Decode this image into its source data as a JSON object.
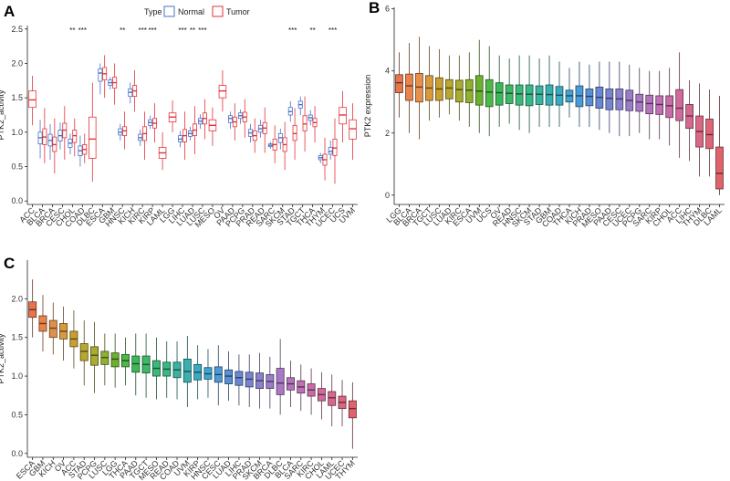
{
  "figure": {
    "panel_a_letter": "A",
    "panel_b_letter": "B",
    "panel_c_letter": "C"
  },
  "legend": {
    "title": "Type",
    "normal_label": "Normal",
    "tumor_label": "Tumor"
  },
  "colors": {
    "normal": "#4A71C4",
    "tumor": "#E53238"
  },
  "chart_data": [
    {
      "id": "A",
      "type": "boxplot",
      "ylabel": "PTK2_activity",
      "xlabel": "",
      "ylim": [
        -0.05,
        2.55
      ],
      "yticks": [
        "0.0",
        "0.5",
        "1.0",
        "1.5",
        "2.0",
        "2.5"
      ],
      "categories": [
        "ACC",
        "BLCA",
        "BRCA",
        "CESC",
        "CHOL",
        "COAD",
        "DLBC",
        "ESCA",
        "GBM",
        "HNSC",
        "KICH",
        "KIRC",
        "KIRP",
        "LAML",
        "LGG",
        "LIHC",
        "LUAD",
        "LUSC",
        "MESO",
        "OV",
        "PAAD",
        "PCPG",
        "PRAD",
        "READ",
        "SARC",
        "SKCM",
        "STAD",
        "TGCT",
        "THCA",
        "THYM",
        "UCEC",
        "UCS",
        "UVM"
      ],
      "significance": [
        "",
        "",
        "",
        "",
        "**",
        "***",
        "",
        "",
        "",
        "**",
        "",
        "***",
        "***",
        "",
        "",
        "***",
        "**",
        "***",
        "",
        "",
        "",
        "",
        "",
        "",
        "",
        "",
        "***",
        "",
        "**",
        "",
        "***",
        "",
        ""
      ],
      "series": [
        {
          "name": "Normal",
          "boxes": [
            null,
            {
              "min": 0.62,
              "q1": 0.83,
              "med": 0.92,
              "q3": 1.0,
              "max": 1.18
            },
            {
              "min": 0.6,
              "q1": 0.8,
              "med": 0.88,
              "q3": 0.97,
              "max": 1.12
            },
            {
              "min": 0.75,
              "q1": 0.87,
              "med": 0.95,
              "q3": 1.03,
              "max": 1.14
            },
            {
              "min": 0.68,
              "q1": 0.78,
              "med": 0.84,
              "q3": 0.9,
              "max": 0.98
            },
            {
              "min": 0.5,
              "q1": 0.66,
              "med": 0.73,
              "q3": 0.8,
              "max": 0.95
            },
            null,
            {
              "min": 1.55,
              "q1": 1.74,
              "med": 1.86,
              "q3": 1.92,
              "max": 2.0
            },
            {
              "min": 1.62,
              "q1": 1.68,
              "med": 1.72,
              "q3": 1.76,
              "max": 1.8
            },
            {
              "min": 0.88,
              "q1": 0.96,
              "med": 1.0,
              "q3": 1.05,
              "max": 1.12
            },
            {
              "min": 1.42,
              "q1": 1.52,
              "med": 1.58,
              "q3": 1.63,
              "max": 1.72
            },
            {
              "min": 0.8,
              "q1": 0.88,
              "med": 0.92,
              "q3": 0.97,
              "max": 1.04
            },
            {
              "min": 1.05,
              "q1": 1.1,
              "med": 1.14,
              "q3": 1.18,
              "max": 1.24
            },
            null,
            null,
            {
              "min": 0.78,
              "q1": 0.86,
              "med": 0.9,
              "q3": 0.95,
              "max": 1.02
            },
            {
              "min": 0.88,
              "q1": 0.94,
              "med": 0.98,
              "q3": 1.02,
              "max": 1.08
            },
            {
              "min": 1.05,
              "q1": 1.12,
              "med": 1.16,
              "q3": 1.2,
              "max": 1.26
            },
            null,
            null,
            {
              "min": 1.05,
              "q1": 1.14,
              "med": 1.2,
              "q3": 1.24,
              "max": 1.3
            },
            {
              "min": 1.12,
              "q1": 1.2,
              "med": 1.24,
              "q3": 1.28,
              "max": 1.33
            },
            {
              "min": 0.85,
              "q1": 0.94,
              "med": 0.99,
              "q3": 1.04,
              "max": 1.12
            },
            {
              "min": 0.92,
              "q1": 1.0,
              "med": 1.05,
              "q3": 1.1,
              "max": 1.18
            },
            {
              "min": 0.76,
              "q1": 0.79,
              "med": 0.81,
              "q3": 0.83,
              "max": 0.86
            },
            {
              "min": 0.75,
              "q1": 0.85,
              "med": 0.92,
              "q3": 0.98,
              "max": 1.05
            },
            {
              "min": 1.15,
              "q1": 1.25,
              "med": 1.3,
              "q3": 1.36,
              "max": 1.45
            },
            {
              "min": 1.25,
              "q1": 1.35,
              "med": 1.4,
              "q3": 1.45,
              "max": 1.52
            },
            {
              "min": 1.1,
              "q1": 1.17,
              "med": 1.21,
              "q3": 1.25,
              "max": 1.32
            },
            {
              "min": 0.55,
              "q1": 0.6,
              "med": 0.63,
              "q3": 0.66,
              "max": 0.7
            },
            {
              "min": 0.6,
              "q1": 0.68,
              "med": 0.72,
              "q3": 0.78,
              "max": 0.88
            },
            null,
            null
          ]
        },
        {
          "name": "Tumor",
          "boxes": [
            {
              "min": 1.1,
              "q1": 1.36,
              "med": 1.47,
              "q3": 1.6,
              "max": 1.82
            },
            {
              "min": 0.55,
              "q1": 0.82,
              "med": 0.93,
              "q3": 1.05,
              "max": 1.35
            },
            {
              "min": 0.4,
              "q1": 0.72,
              "med": 0.82,
              "q3": 0.93,
              "max": 1.2
            },
            {
              "min": 0.6,
              "q1": 0.92,
              "med": 1.03,
              "q3": 1.13,
              "max": 1.38
            },
            {
              "min": 0.65,
              "q1": 0.85,
              "med": 0.95,
              "q3": 1.03,
              "max": 1.2
            },
            {
              "min": 0.55,
              "q1": 0.68,
              "med": 0.75,
              "q3": 0.82,
              "max": 0.98
            },
            {
              "min": 0.28,
              "q1": 0.62,
              "med": 0.9,
              "q3": 1.22,
              "max": 1.72
            },
            {
              "min": 1.5,
              "q1": 1.76,
              "med": 1.85,
              "q3": 1.94,
              "max": 2.12
            },
            {
              "min": 1.4,
              "q1": 1.64,
              "med": 1.72,
              "q3": 1.8,
              "max": 2.0
            },
            {
              "min": 0.75,
              "q1": 0.95,
              "med": 1.02,
              "q3": 1.08,
              "max": 1.3
            },
            {
              "min": 1.3,
              "q1": 1.52,
              "med": 1.6,
              "q3": 1.68,
              "max": 1.9
            },
            {
              "min": 0.6,
              "q1": 0.88,
              "med": 0.98,
              "q3": 1.08,
              "max": 1.3
            },
            {
              "min": 0.85,
              "q1": 1.06,
              "med": 1.13,
              "q3": 1.2,
              "max": 1.42
            },
            {
              "min": 0.45,
              "q1": 0.62,
              "med": 0.7,
              "q3": 0.78,
              "max": 1.0
            },
            {
              "min": 1.0,
              "q1": 1.15,
              "med": 1.22,
              "q3": 1.28,
              "max": 1.46
            },
            {
              "min": 0.6,
              "q1": 0.86,
              "med": 0.95,
              "q3": 1.04,
              "max": 1.3
            },
            {
              "min": 0.68,
              "q1": 0.95,
              "med": 1.03,
              "q3": 1.12,
              "max": 1.38
            },
            {
              "min": 0.9,
              "q1": 1.12,
              "med": 1.2,
              "q3": 1.28,
              "max": 1.48
            },
            {
              "min": 0.8,
              "q1": 1.02,
              "med": 1.1,
              "q3": 1.18,
              "max": 1.36
            },
            {
              "min": 1.3,
              "q1": 1.5,
              "med": 1.6,
              "q3": 1.68,
              "max": 1.9
            },
            {
              "min": 0.88,
              "q1": 1.08,
              "med": 1.15,
              "q3": 1.22,
              "max": 1.42
            },
            {
              "min": 0.92,
              "q1": 1.15,
              "med": 1.22,
              "q3": 1.29,
              "max": 1.48
            },
            {
              "min": 0.7,
              "q1": 0.88,
              "med": 0.95,
              "q3": 1.02,
              "max": 1.2
            },
            {
              "min": 0.7,
              "q1": 0.98,
              "med": 1.06,
              "q3": 1.14,
              "max": 1.36
            },
            {
              "min": 0.55,
              "q1": 0.74,
              "med": 0.82,
              "q3": 0.9,
              "max": 1.1
            },
            {
              "min": 0.45,
              "q1": 0.72,
              "med": 0.82,
              "q3": 0.92,
              "max": 1.15
            },
            {
              "min": 0.6,
              "q1": 0.88,
              "med": 0.98,
              "q3": 1.1,
              "max": 1.35
            },
            {
              "min": 0.72,
              "q1": 1.02,
              "med": 1.12,
              "q3": 1.24,
              "max": 1.52
            },
            {
              "min": 0.85,
              "q1": 1.08,
              "med": 1.14,
              "q3": 1.2,
              "max": 1.38
            },
            {
              "min": 0.3,
              "q1": 0.52,
              "med": 0.6,
              "q3": 0.68,
              "max": 0.92
            },
            {
              "min": 0.25,
              "q1": 0.66,
              "med": 0.77,
              "q3": 0.9,
              "max": 1.2
            },
            {
              "min": 0.85,
              "q1": 1.12,
              "med": 1.25,
              "q3": 1.36,
              "max": 1.6
            },
            {
              "min": 0.6,
              "q1": 0.9,
              "med": 1.05,
              "q3": 1.18,
              "max": 1.42
            }
          ]
        }
      ]
    },
    {
      "id": "B",
      "type": "boxplot",
      "ylabel": "PTK2 expression",
      "xlabel": "",
      "ylim": [
        -0.3,
        6.05
      ],
      "yticks": [
        "0",
        "2",
        "4",
        "6"
      ],
      "categories": [
        "LGG",
        "BLCA",
        "BRCA",
        "TGCT",
        "LUSC",
        "LUAD",
        "KIRC",
        "ESCA",
        "UVM",
        "UCS",
        "OV",
        "READ",
        "HNSC",
        "SKCM",
        "STAD",
        "GBM",
        "COAD",
        "THCA",
        "KICH",
        "PRAD",
        "MESO",
        "PAAD",
        "CESC",
        "UCEC",
        "PCPG",
        "SARC",
        "KIRP",
        "CHOL",
        "ACC",
        "LIHC",
        "THYM",
        "DLBC",
        "LAML"
      ],
      "medians": [
        3.62,
        3.52,
        3.48,
        3.45,
        3.42,
        3.45,
        3.4,
        3.38,
        3.35,
        3.32,
        3.3,
        3.28,
        3.26,
        3.25,
        3.25,
        3.24,
        3.22,
        3.2,
        3.2,
        3.18,
        3.15,
        3.12,
        3.1,
        3.05,
        3.0,
        2.95,
        2.92,
        2.88,
        2.8,
        2.55,
        2.05,
        1.95,
        0.7
      ],
      "box_colors": [
        "#E8744A",
        "#E8834A",
        "#E8904A",
        "#D89A3A",
        "#C8A030",
        "#B8A830",
        "#A8AC30",
        "#90B030",
        "#6CB030",
        "#4EB848",
        "#3CB858",
        "#3CB868",
        "#3CB878",
        "#38B888",
        "#38B4A0",
        "#38B0B0",
        "#3AAAC0",
        "#40A4D0",
        "#4A9AD8",
        "#5890D8",
        "#6888D4",
        "#7884D0",
        "#8A80CC",
        "#9A7CC8",
        "#A878C4",
        "#B474BC",
        "#C070B4",
        "#C86CA8",
        "#D06A9C",
        "#D66890",
        "#DA6684",
        "#DE6478",
        "#E0626C"
      ],
      "q1": [
        3.3,
        3.05,
        3.0,
        3.05,
        3.05,
        3.1,
        3.0,
        2.98,
        2.9,
        2.85,
        2.9,
        2.95,
        2.9,
        2.88,
        2.92,
        2.9,
        2.9,
        3.0,
        2.85,
        2.88,
        2.8,
        2.75,
        2.75,
        2.72,
        2.7,
        2.62,
        2.6,
        2.5,
        2.4,
        2.15,
        1.55,
        1.5,
        0.2
      ],
      "q3": [
        3.88,
        3.9,
        3.92,
        3.85,
        3.78,
        3.72,
        3.7,
        3.72,
        3.85,
        3.72,
        3.62,
        3.55,
        3.55,
        3.55,
        3.52,
        3.55,
        3.5,
        3.38,
        3.52,
        3.42,
        3.48,
        3.42,
        3.42,
        3.38,
        3.25,
        3.22,
        3.2,
        3.2,
        3.4,
        2.92,
        2.55,
        2.45,
        1.55
      ],
      "whisker_min": [
        2.5,
        2.0,
        1.8,
        2.4,
        2.5,
        2.6,
        2.4,
        2.2,
        2.0,
        1.9,
        2.2,
        2.3,
        2.1,
        2.0,
        2.2,
        2.2,
        2.2,
        2.5,
        2.2,
        2.2,
        2.1,
        2.0,
        1.9,
        1.9,
        2.0,
        1.8,
        1.8,
        1.6,
        1.2,
        1.1,
        0.6,
        0.6,
        0.0
      ],
      "whisker_max": [
        4.6,
        4.9,
        5.1,
        4.8,
        4.7,
        4.5,
        4.5,
        4.6,
        5.0,
        4.8,
        4.5,
        4.4,
        4.5,
        4.5,
        4.4,
        4.5,
        4.3,
        4.1,
        4.3,
        4.2,
        4.3,
        4.3,
        4.3,
        4.2,
        4.1,
        4.0,
        4.0,
        4.1,
        4.6,
        3.7,
        3.6,
        3.4,
        3.2
      ]
    },
    {
      "id": "C",
      "type": "boxplot",
      "ylabel": "PTK2_activity",
      "xlabel": "",
      "ylim": [
        -0.05,
        2.5
      ],
      "yticks": [
        "0.0",
        "0.5",
        "1.0",
        "1.5",
        "2.0"
      ],
      "categories": [
        "ESCA",
        "GBM",
        "KICH",
        "OV",
        "ACC",
        "STAD",
        "PCPG",
        "LUSC",
        "LGG",
        "THCA",
        "PAAD",
        "TGCT",
        "MESO",
        "READ",
        "COAD",
        "UVM",
        "KIRP",
        "HNSC",
        "CESC",
        "LUAD",
        "LIHC",
        "PRAD",
        "SKCM",
        "BRCA",
        "DLBC",
        "BLCA",
        "SARC",
        "KIRC",
        "CHOL",
        "LAML",
        "UCEC",
        "THYM"
      ],
      "medians": [
        1.86,
        1.68,
        1.62,
        1.58,
        1.48,
        1.32,
        1.27,
        1.24,
        1.22,
        1.2,
        1.16,
        1.15,
        1.1,
        1.09,
        1.08,
        1.06,
        1.05,
        1.03,
        1.02,
        1.0,
        0.98,
        0.96,
        0.94,
        0.93,
        0.91,
        0.9,
        0.86,
        0.82,
        0.76,
        0.72,
        0.66,
        0.58
      ],
      "q1": [
        1.76,
        1.58,
        1.5,
        1.48,
        1.38,
        1.2,
        1.14,
        1.15,
        1.12,
        1.12,
        1.05,
        1.04,
        1.0,
        1.0,
        0.98,
        0.92,
        0.95,
        0.96,
        0.92,
        0.9,
        0.88,
        0.86,
        0.84,
        0.84,
        0.76,
        0.82,
        0.78,
        0.74,
        0.68,
        0.62,
        0.58,
        0.46
      ],
      "q3": [
        1.96,
        1.78,
        1.72,
        1.68,
        1.58,
        1.42,
        1.38,
        1.32,
        1.3,
        1.28,
        1.26,
        1.26,
        1.2,
        1.18,
        1.18,
        1.22,
        1.15,
        1.11,
        1.12,
        1.08,
        1.06,
        1.05,
        1.04,
        1.02,
        1.1,
        0.98,
        0.94,
        0.9,
        0.84,
        0.8,
        0.74,
        0.68
      ],
      "whisker_min": [
        1.5,
        1.32,
        1.28,
        1.2,
        1.1,
        0.88,
        0.78,
        0.88,
        0.85,
        0.88,
        0.75,
        0.72,
        0.7,
        0.72,
        0.7,
        0.6,
        0.7,
        0.72,
        0.62,
        0.68,
        0.62,
        0.6,
        0.58,
        0.58,
        0.5,
        0.6,
        0.55,
        0.5,
        0.44,
        0.35,
        0.35,
        0.06
      ],
      "whisker_max": [
        2.25,
        2.05,
        1.95,
        1.9,
        1.85,
        1.72,
        1.7,
        1.55,
        1.55,
        1.5,
        1.55,
        1.55,
        1.5,
        1.45,
        1.45,
        1.52,
        1.4,
        1.35,
        1.4,
        1.32,
        1.28,
        1.28,
        1.3,
        1.25,
        1.48,
        1.2,
        1.15,
        1.1,
        1.05,
        1.02,
        0.95,
        0.92
      ],
      "box_colors": [
        "#E8744A",
        "#E8834A",
        "#E0904A",
        "#D89A3A",
        "#C8A030",
        "#B8A830",
        "#A8AC30",
        "#90B030",
        "#6CB030",
        "#4EB848",
        "#3CB858",
        "#3CB868",
        "#3CB878",
        "#38B888",
        "#38B4A0",
        "#38B0B0",
        "#3AAAC0",
        "#40A4D0",
        "#4A9AD8",
        "#5890D8",
        "#6888D4",
        "#7884D0",
        "#8A80CC",
        "#9A7CC8",
        "#A878C4",
        "#B474BC",
        "#C070B4",
        "#C86CA8",
        "#D06A9C",
        "#D66890",
        "#DA6684",
        "#E0626C"
      ]
    }
  ]
}
